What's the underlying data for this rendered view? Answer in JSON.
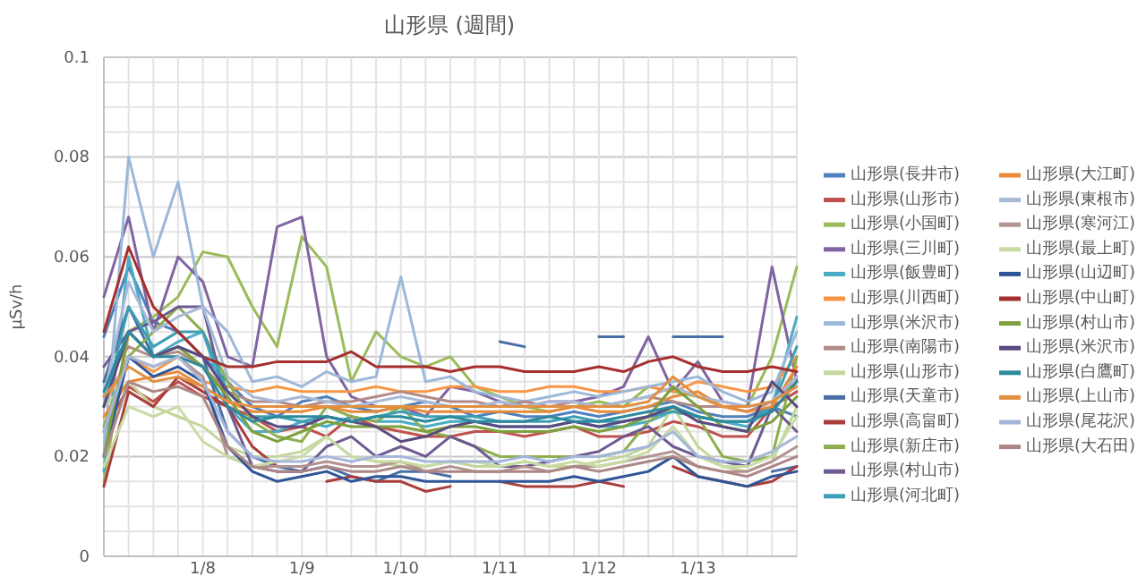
{
  "chart_data": {
    "type": "line",
    "title": "山形県 (週間)",
    "ylabel": "μSv/h",
    "ylim": [
      0,
      0.1
    ],
    "yticks": [
      0,
      {
        "value": 0.005,
        "label": null
      },
      {
        "value": 0.01,
        "label": null
      },
      {
        "value": 0.015,
        "label": null
      },
      0.02,
      {
        "value": 0.025,
        "label": null
      },
      {
        "value": 0.03,
        "label": null
      },
      {
        "value": 0.035,
        "label": null
      },
      0.04,
      {
        "value": 0.045,
        "label": null
      },
      {
        "value": 0.05,
        "label": null
      },
      {
        "value": 0.055,
        "label": null
      },
      0.06,
      {
        "value": 0.065,
        "label": null
      },
      {
        "value": 0.07,
        "label": null
      },
      {
        "value": 0.075,
        "label": null
      },
      0.08,
      {
        "value": 0.085,
        "label": null
      },
      {
        "value": 0.09,
        "label": null
      },
      {
        "value": 0.095,
        "label": null
      },
      0.1
    ],
    "categories": [
      null,
      null,
      null,
      null,
      "1/8",
      null,
      null,
      null,
      "1/9",
      null,
      null,
      null,
      "1/10",
      null,
      null,
      null,
      "1/11",
      null,
      null,
      null,
      "1/12",
      null,
      null,
      null,
      "1/13",
      null,
      null,
      null,
      null
    ],
    "grid": true,
    "legend": "right",
    "marker": "none",
    "line_style": "solid",
    "series": [
      {
        "name": "山形県(長井市)",
        "color": "#4f81bd",
        "values": [
          0.044,
          0.058,
          0.047,
          0.045,
          0.04,
          0.035,
          0.03,
          0.028,
          0.031,
          0.032,
          0.03,
          0.029,
          0.03,
          0.031,
          0.03,
          0.028,
          0.029,
          0.028,
          0.028,
          0.029,
          0.028,
          0.029,
          0.03,
          0.031,
          0.029,
          0.028,
          0.028,
          0.03,
          0.028
        ]
      },
      {
        "name": "山形県(山形市)",
        "color": "#c0504d",
        "values": [
          0.025,
          0.034,
          0.031,
          0.035,
          0.032,
          0.03,
          0.028,
          0.025,
          0.026,
          0.024,
          0.028,
          0.026,
          0.025,
          0.024,
          0.024,
          0.025,
          0.025,
          0.024,
          0.025,
          0.026,
          0.024,
          0.024,
          0.025,
          0.027,
          0.026,
          0.024,
          0.024,
          0.03,
          0.033
        ]
      },
      {
        "name": "山形県(小国町)",
        "color": "#9bbb59",
        "values": [
          0.015,
          0.045,
          0.048,
          0.052,
          0.061,
          0.06,
          0.05,
          0.042,
          0.064,
          0.058,
          0.035,
          0.045,
          0.04,
          0.038,
          0.04,
          0.034,
          0.032,
          0.03,
          0.029,
          0.03,
          0.031,
          0.03,
          0.034,
          0.033,
          0.032,
          0.03,
          0.03,
          0.04,
          0.058
        ]
      },
      {
        "name": "山形県(三川町)",
        "color": "#8064a2",
        "values": [
          0.052,
          0.068,
          0.045,
          0.06,
          0.055,
          0.04,
          0.038,
          0.066,
          0.068,
          0.04,
          0.032,
          0.03,
          0.03,
          0.028,
          0.034,
          0.033,
          0.031,
          0.03,
          0.031,
          0.031,
          0.032,
          0.034,
          0.044,
          0.033,
          0.039,
          0.031,
          0.03,
          0.058,
          0.035
        ]
      },
      {
        "name": "山形県(飯豊町)",
        "color": "#4bacc6",
        "values": [
          0.017,
          0.06,
          0.04,
          0.043,
          0.045,
          0.03,
          0.025,
          0.025,
          0.027,
          0.026,
          0.028,
          0.027,
          0.027,
          0.026,
          0.027,
          0.027,
          0.026,
          0.026,
          0.026,
          0.027,
          0.026,
          0.026,
          0.027,
          0.029,
          0.028,
          0.027,
          0.026,
          0.03,
          0.048
        ]
      },
      {
        "name": "山形県(川西町)",
        "color": "#f79646",
        "values": [
          0.03,
          0.04,
          0.037,
          0.04,
          0.035,
          0.034,
          0.033,
          0.034,
          0.033,
          0.033,
          0.033,
          0.034,
          0.033,
          0.033,
          0.034,
          0.034,
          0.033,
          0.033,
          0.034,
          0.034,
          0.033,
          0.033,
          0.034,
          0.033,
          0.035,
          0.034,
          0.033,
          0.034,
          0.04
        ]
      },
      {
        "name": "山形県(米沢市)",
        "color": "#9cb8d9",
        "values": [
          0.02,
          0.08,
          0.06,
          0.075,
          0.05,
          0.045,
          0.035,
          0.036,
          0.034,
          0.037,
          0.035,
          0.036,
          0.056,
          0.035,
          0.036,
          0.033,
          0.032,
          0.031,
          0.032,
          0.033,
          0.032,
          0.033,
          0.034,
          0.035,
          0.036,
          0.033,
          0.031,
          0.033,
          0.045
        ]
      },
      {
        "name": "山形県(南陽市)",
        "color": "#b28a89",
        "values": [
          0.035,
          0.042,
          0.04,
          0.041,
          0.038,
          0.033,
          0.031,
          0.031,
          0.03,
          0.031,
          0.031,
          0.032,
          0.033,
          0.032,
          0.031,
          0.031,
          0.03,
          0.031,
          0.03,
          0.031,
          0.03,
          0.031,
          0.032,
          0.031,
          0.03,
          0.03,
          0.029,
          0.031,
          0.035
        ]
      },
      {
        "name": "山形県(山形市)",
        "color": "#c3d69b",
        "values": [
          0.03,
          0.035,
          0.03,
          0.028,
          0.026,
          0.022,
          0.02,
          0.02,
          0.021,
          0.024,
          0.02,
          0.019,
          0.018,
          0.018,
          0.019,
          0.018,
          0.018,
          0.019,
          0.018,
          0.018,
          0.019,
          0.02,
          0.022,
          0.03,
          0.022,
          0.018,
          0.017,
          0.019,
          0.03
        ]
      },
      {
        "name": "山形県(天童市)",
        "color": "#4a6fa5",
        "values": [
          0.035,
          0.05,
          0.04,
          0.042,
          0.04,
          0.025,
          0.02,
          0.018,
          0.017,
          0.018,
          0.016,
          0.015,
          0.017,
          0.017,
          0.016,
          null,
          0.043,
          0.042,
          null,
          null,
          0.044,
          0.044,
          null,
          0.044,
          0.044,
          0.044,
          null,
          0.017,
          0.018
        ]
      },
      {
        "name": "山形県(高畠町)",
        "color": "#a93d3a",
        "values": [
          0.014,
          0.033,
          0.03,
          0.036,
          0.033,
          0.03,
          0.022,
          0.018,
          null,
          0.015,
          0.016,
          0.015,
          0.015,
          0.013,
          0.014,
          null,
          0.015,
          0.014,
          0.014,
          0.014,
          0.015,
          0.014,
          null,
          0.018,
          0.016,
          0.015,
          0.014,
          0.015,
          0.018
        ]
      },
      {
        "name": "山形県(新庄市)",
        "color": "#8eae50",
        "values": [
          0.026,
          0.04,
          0.045,
          0.05,
          0.045,
          0.035,
          0.027,
          0.024,
          0.023,
          0.03,
          0.028,
          0.027,
          0.03,
          0.025,
          0.024,
          0.022,
          0.02,
          0.02,
          0.02,
          0.02,
          0.02,
          0.021,
          0.027,
          0.03,
          0.028,
          0.02,
          0.019,
          0.02,
          0.04
        ]
      },
      {
        "name": "山形県(村山市)",
        "color": "#6f5a92",
        "values": [
          0.038,
          0.045,
          0.047,
          0.05,
          0.05,
          0.03,
          0.018,
          0.017,
          0.017,
          0.022,
          0.024,
          0.02,
          0.022,
          0.02,
          0.024,
          0.022,
          0.018,
          0.018,
          0.019,
          0.02,
          0.021,
          0.024,
          0.026,
          0.022,
          0.02,
          0.019,
          0.018,
          0.03,
          0.025
        ]
      },
      {
        "name": "山形県(河北町)",
        "color": "#3e9fb5",
        "values": [
          0.03,
          0.05,
          0.042,
          0.045,
          0.045,
          0.033,
          0.028,
          0.028,
          0.027,
          0.028,
          0.027,
          0.028,
          0.029,
          0.028,
          0.028,
          0.028,
          0.027,
          0.027,
          0.027,
          0.028,
          0.027,
          0.027,
          0.028,
          0.029,
          0.028,
          0.027,
          0.027,
          0.03,
          0.042
        ]
      },
      {
        "name": "山形県(大江町)",
        "color": "#e88a3a",
        "values": [
          0.028,
          0.035,
          0.036,
          0.037,
          0.034,
          0.031,
          0.029,
          0.029,
          0.029,
          0.03,
          0.029,
          0.029,
          0.03,
          0.029,
          0.029,
          0.029,
          0.029,
          0.029,
          0.029,
          0.03,
          0.029,
          0.029,
          0.03,
          0.032,
          0.033,
          0.03,
          0.029,
          0.03,
          0.038
        ]
      },
      {
        "name": "山形県(東根市)",
        "color": "#a8bad8",
        "values": [
          0.032,
          0.055,
          0.045,
          0.048,
          0.05,
          0.036,
          0.032,
          0.031,
          0.032,
          0.031,
          0.03,
          0.031,
          0.032,
          0.031,
          0.03,
          0.03,
          0.031,
          0.03,
          0.031,
          0.031,
          0.03,
          0.031,
          0.032,
          0.034,
          0.032,
          0.031,
          0.03,
          0.031,
          0.036
        ]
      },
      {
        "name": "山形県(寒河江)",
        "color": "#b39392",
        "values": [
          0.025,
          0.04,
          0.038,
          0.04,
          0.036,
          0.02,
          0.018,
          0.018,
          0.018,
          0.019,
          0.018,
          0.018,
          0.019,
          0.017,
          0.018,
          0.017,
          0.017,
          0.018,
          0.017,
          0.018,
          0.018,
          0.019,
          0.02,
          0.021,
          0.018,
          0.017,
          0.017,
          0.019,
          0.022
        ]
      },
      {
        "name": "山形県(最上町)",
        "color": "#c9dba5",
        "values": [
          0.018,
          0.03,
          0.028,
          0.03,
          0.023,
          0.02,
          0.018,
          0.019,
          0.02,
          0.024,
          0.02,
          0.019,
          0.019,
          0.018,
          0.019,
          0.019,
          0.018,
          0.019,
          0.018,
          0.019,
          0.018,
          0.019,
          0.021,
          0.026,
          0.02,
          0.018,
          0.018,
          0.02,
          0.028
        ]
      },
      {
        "name": "山形県(山辺町)",
        "color": "#2f5597",
        "values": [
          0.02,
          0.04,
          0.036,
          0.038,
          0.035,
          0.022,
          0.017,
          0.015,
          0.016,
          0.017,
          0.015,
          0.016,
          0.016,
          0.015,
          0.015,
          0.015,
          0.015,
          0.015,
          0.015,
          0.016,
          0.015,
          0.016,
          0.017,
          0.02,
          0.016,
          0.015,
          0.014,
          0.016,
          0.017
        ]
      },
      {
        "name": "山形県(中山町)",
        "color": "#a52f2d",
        "values": [
          0.045,
          0.062,
          0.05,
          0.045,
          0.04,
          0.038,
          0.038,
          0.039,
          0.039,
          0.039,
          0.041,
          0.038,
          0.038,
          0.038,
          0.037,
          0.038,
          0.038,
          0.037,
          0.037,
          0.037,
          0.038,
          0.037,
          0.039,
          0.04,
          0.038,
          0.037,
          0.037,
          0.038,
          0.037
        ]
      },
      {
        "name": "山形県(村山市)",
        "color": "#7da03c",
        "values": [
          0.02,
          0.045,
          0.04,
          0.042,
          0.038,
          0.032,
          0.025,
          0.023,
          0.025,
          0.027,
          0.026,
          0.026,
          0.026,
          0.025,
          0.026,
          0.026,
          0.025,
          0.025,
          0.025,
          0.026,
          0.025,
          0.026,
          0.028,
          0.034,
          0.03,
          0.026,
          0.025,
          0.027,
          0.032
        ]
      },
      {
        "name": "山形県(米沢市)",
        "color": "#5b4a80",
        "values": [
          0.03,
          0.045,
          0.04,
          0.042,
          0.04,
          0.033,
          0.028,
          0.026,
          0.026,
          0.028,
          0.027,
          0.026,
          0.023,
          0.024,
          0.026,
          0.027,
          0.026,
          0.026,
          0.026,
          0.027,
          0.026,
          0.027,
          0.028,
          0.03,
          0.027,
          0.026,
          0.025,
          0.035,
          0.03
        ]
      },
      {
        "name": "山形県(白鷹町)",
        "color": "#2b8a9e",
        "values": [
          0.033,
          0.045,
          0.04,
          0.04,
          0.038,
          0.03,
          0.027,
          0.028,
          0.028,
          0.028,
          0.027,
          0.028,
          0.028,
          0.027,
          0.028,
          0.027,
          0.027,
          0.027,
          0.028,
          0.027,
          0.027,
          0.028,
          0.029,
          0.03,
          0.028,
          0.027,
          0.027,
          0.029,
          0.035
        ]
      },
      {
        "name": "山形県(上山市)",
        "color": "#e29040",
        "values": [
          0.032,
          0.038,
          0.035,
          0.036,
          0.034,
          0.031,
          0.03,
          0.03,
          0.03,
          0.03,
          0.03,
          0.03,
          0.03,
          0.03,
          0.03,
          0.03,
          0.03,
          0.03,
          0.03,
          0.03,
          0.03,
          0.03,
          0.031,
          0.036,
          0.032,
          0.03,
          0.03,
          0.031,
          0.034
        ]
      },
      {
        "name": "山形県(尾花沢)",
        "color": "#a4b7da",
        "values": [
          0.025,
          0.04,
          0.038,
          0.04,
          0.035,
          0.025,
          0.02,
          0.019,
          0.019,
          0.02,
          0.019,
          0.02,
          0.02,
          0.019,
          0.019,
          0.019,
          0.019,
          0.02,
          0.019,
          0.02,
          0.02,
          0.021,
          0.022,
          0.025,
          0.02,
          0.019,
          0.019,
          0.021,
          0.024
        ]
      },
      {
        "name": "山形県(大石田)",
        "color": "#ab8685",
        "values": [
          0.02,
          0.035,
          0.033,
          0.034,
          0.032,
          0.022,
          0.018,
          0.017,
          0.017,
          0.018,
          0.017,
          0.017,
          0.018,
          0.017,
          0.017,
          0.017,
          0.017,
          0.017,
          0.017,
          0.018,
          0.017,
          0.018,
          0.019,
          0.02,
          0.018,
          0.017,
          0.016,
          0.018,
          0.02
        ]
      }
    ]
  }
}
